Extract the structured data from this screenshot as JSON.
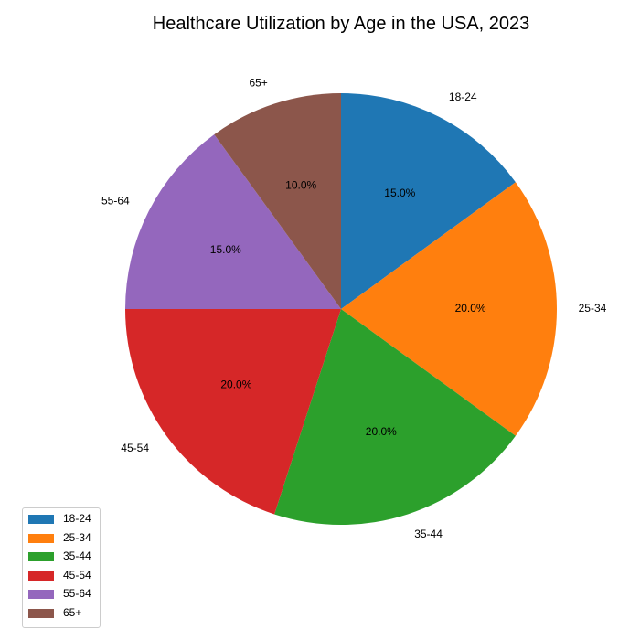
{
  "chart_data": {
    "type": "pie",
    "title": "Healthcare Utilization by Age in the USA, 2023",
    "start_angle_deg": 90,
    "direction": "clockwise",
    "legend_position": "lower-left",
    "slices": [
      {
        "label": "18-24",
        "value": 15.0,
        "pct_label": "15.0%",
        "color": "#1f77b4"
      },
      {
        "label": "25-34",
        "value": 20.0,
        "pct_label": "20.0%",
        "color": "#ff7f0e"
      },
      {
        "label": "35-44",
        "value": 20.0,
        "pct_label": "20.0%",
        "color": "#2ca02c"
      },
      {
        "label": "45-54",
        "value": 20.0,
        "pct_label": "20.0%",
        "color": "#d62728"
      },
      {
        "label": "55-64",
        "value": 15.0,
        "pct_label": "15.0%",
        "color": "#9467bd"
      },
      {
        "label": "65+",
        "value": 10.0,
        "pct_label": "10.0%",
        "color": "#8c564b"
      }
    ]
  }
}
